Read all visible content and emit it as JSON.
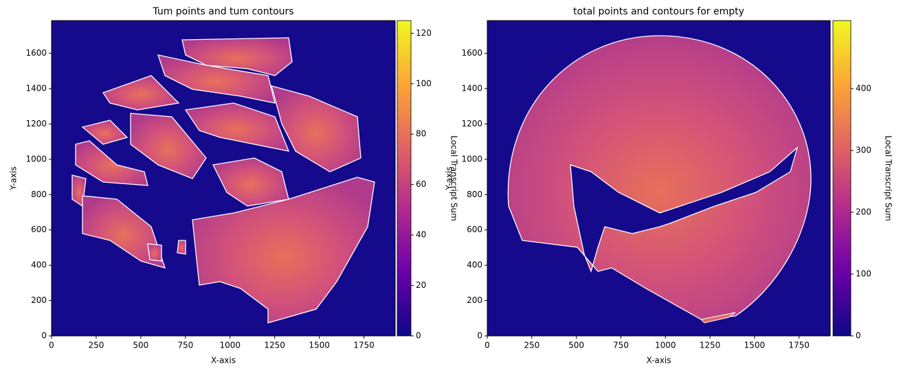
{
  "chart_data": [
    {
      "type": "heatmap",
      "title": "Tum points and tum contours",
      "xlabel": "X-axis",
      "ylabel": "Y-axis",
      "xlim": [
        0,
        1925
      ],
      "xticks": [
        0,
        250,
        500,
        750,
        1000,
        1250,
        1500,
        1750
      ],
      "ylim": [
        0,
        1785
      ],
      "yticks": [
        0,
        200,
        400,
        600,
        800,
        1000,
        1200,
        1400,
        1600
      ],
      "colorbar": {
        "label": "Local Transcript Sum",
        "lim": [
          0,
          125
        ],
        "ticks": [
          0,
          20,
          40,
          60,
          80,
          100,
          120
        ]
      },
      "colormap": [
        "#0d0887",
        "#6a00a8",
        "#b12a90",
        "#e16462",
        "#fca636",
        "#f0f921"
      ]
    },
    {
      "type": "heatmap",
      "title": "total points and contours for empty",
      "xlabel": "X-axis",
      "ylabel": "Y-axis",
      "xlim": [
        0,
        1925
      ],
      "xticks": [
        0,
        250,
        500,
        750,
        1000,
        1250,
        1500,
        1750
      ],
      "ylim": [
        0,
        1785
      ],
      "yticks": [
        0,
        200,
        400,
        600,
        800,
        1000,
        1200,
        1400,
        1600
      ],
      "colorbar": {
        "label": "Local Transcript Sum",
        "lim": [
          0,
          510
        ],
        "ticks": [
          0,
          100,
          200,
          300,
          400
        ]
      },
      "colormap": [
        "#0d0887",
        "#6a00a8",
        "#b12a90",
        "#e16462",
        "#fca636",
        "#f0f921"
      ]
    }
  ]
}
